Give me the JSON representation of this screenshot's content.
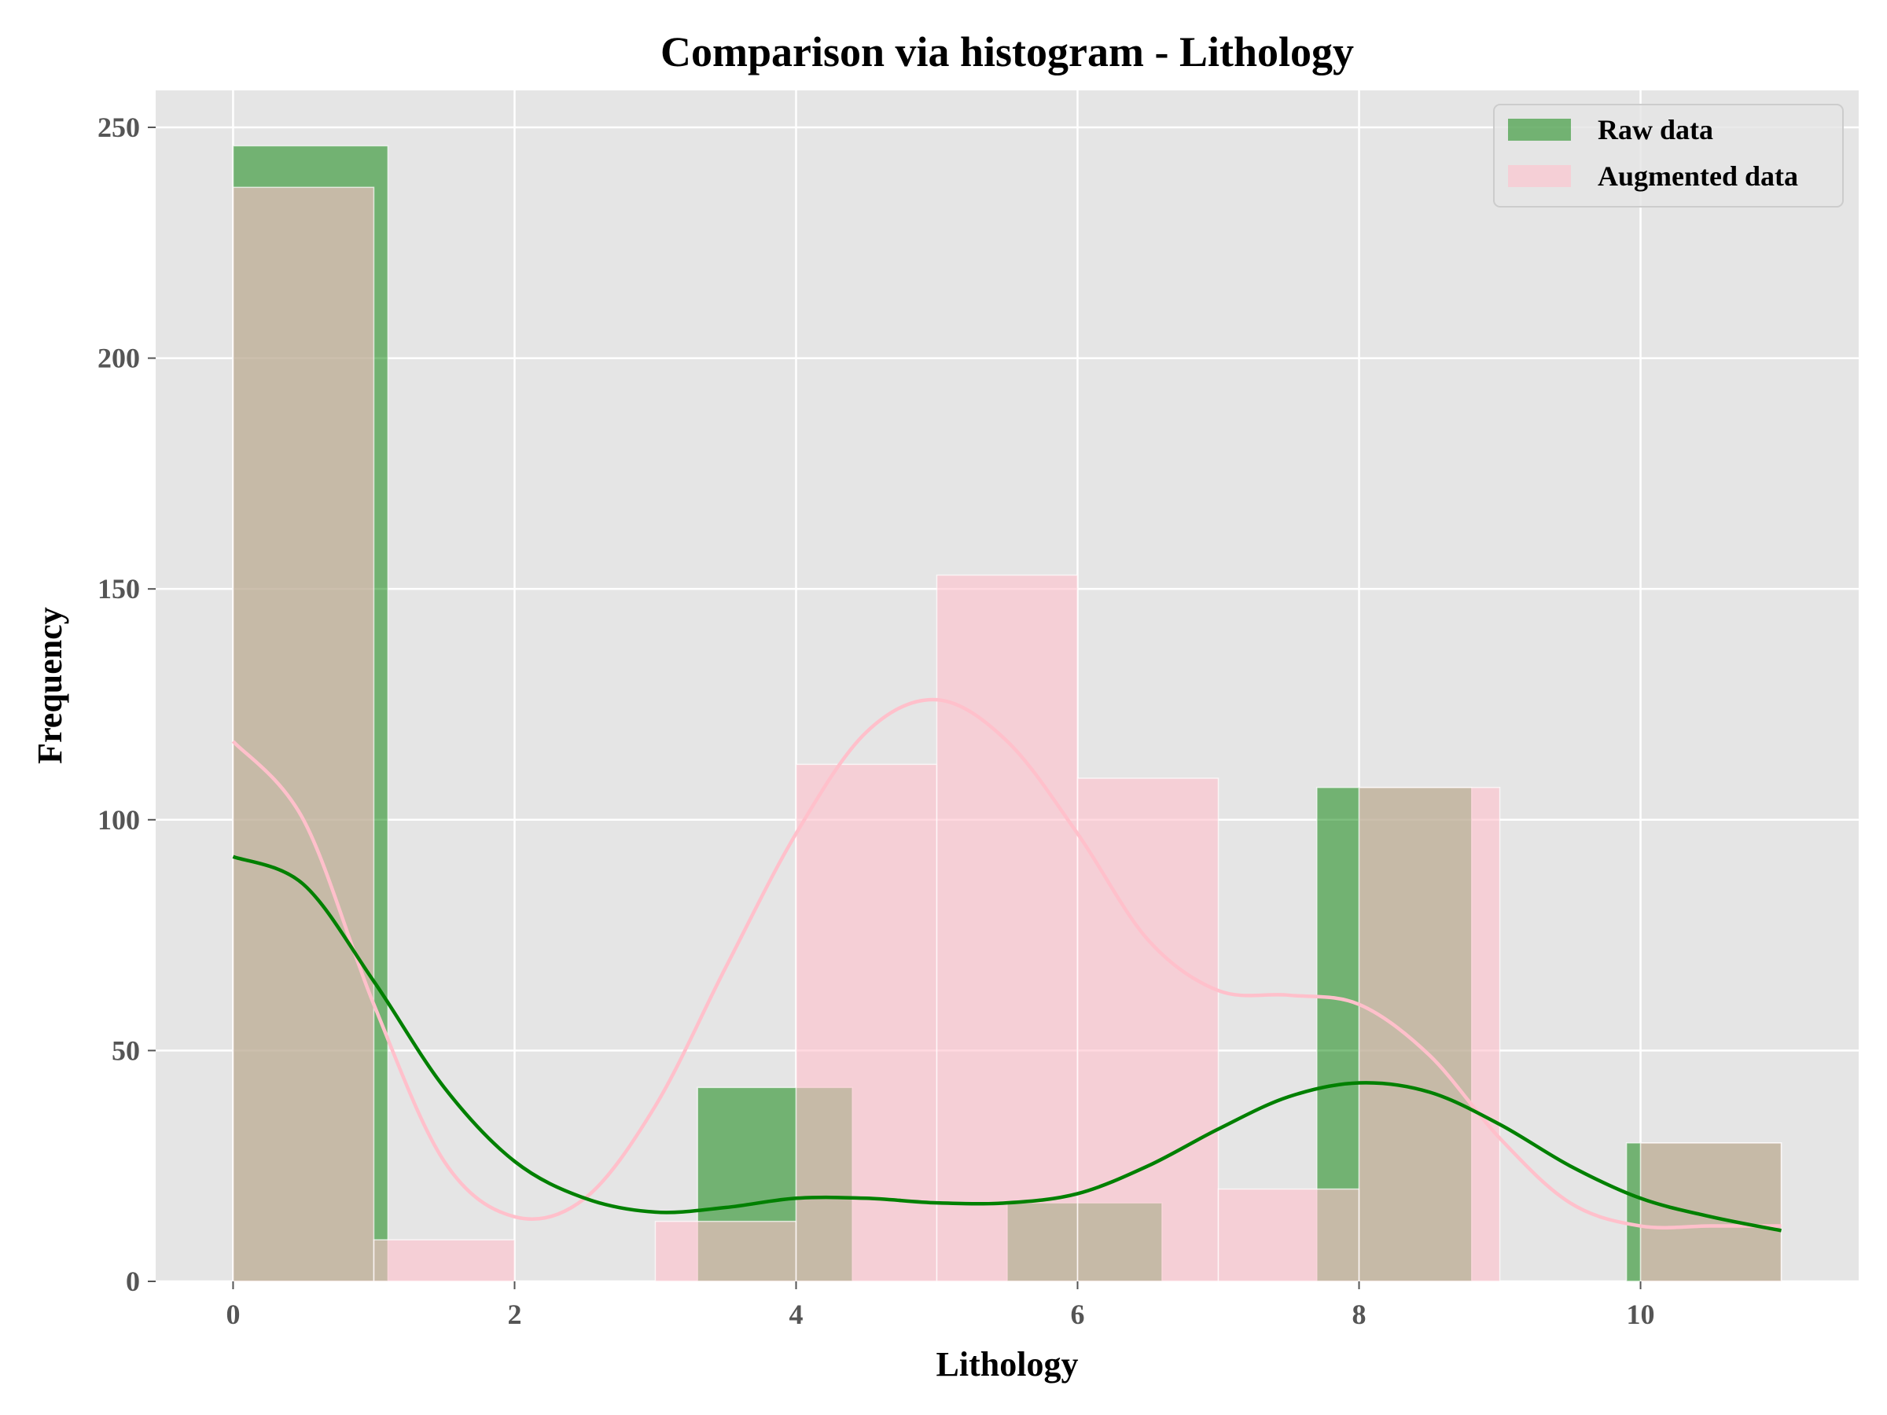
{
  "chart_data": {
    "type": "bar",
    "title": "Comparison via histogram - Lithology",
    "xlabel": "Lithology",
    "ylabel": "Frequency",
    "xlim": [
      -0.55,
      11.55
    ],
    "ylim": [
      0,
      258
    ],
    "xticks": [
      0,
      2,
      4,
      6,
      8,
      10
    ],
    "yticks": [
      0,
      50,
      100,
      150,
      200,
      250
    ],
    "grid": true,
    "legend": "top-right",
    "colors": {
      "raw_bar": "#008000",
      "raw_line": "#008000",
      "aug_bar": "#ffc0cb",
      "aug_line": "#ffc0cb",
      "axes_bg": "#e5e5e5",
      "grid": "#ffffff"
    },
    "series": [
      {
        "name": "Raw data",
        "bins": [
          {
            "x0": 0,
            "x1": 1.1,
            "count": 246
          },
          {
            "x0": 3.3,
            "x1": 4.4,
            "count": 42
          },
          {
            "x0": 5.5,
            "x1": 6.6,
            "count": 17
          },
          {
            "x0": 7.7,
            "x1": 8.8,
            "count": 107
          },
          {
            "x0": 9.9,
            "x1": 11.0,
            "count": 30
          }
        ],
        "kde": {
          "x": [
            0,
            0.5,
            1,
            1.5,
            2,
            2.5,
            3,
            3.5,
            4,
            4.5,
            5,
            5.5,
            6,
            6.5,
            7,
            7.5,
            8,
            8.5,
            9,
            9.5,
            10,
            10.5,
            11
          ],
          "y": [
            92,
            86,
            65,
            42,
            26,
            18,
            15,
            16,
            18,
            18,
            17,
            17,
            19,
            25,
            33,
            40,
            43,
            41,
            34,
            25,
            18,
            14,
            11
          ]
        }
      },
      {
        "name": "Augmented data",
        "bins": [
          {
            "x0": 0,
            "x1": 1,
            "count": 237
          },
          {
            "x0": 1,
            "x1": 2,
            "count": 9
          },
          {
            "x0": 2,
            "x1": 3,
            "count": 0
          },
          {
            "x0": 3,
            "x1": 4,
            "count": 13
          },
          {
            "x0": 4,
            "x1": 5,
            "count": 112
          },
          {
            "x0": 5,
            "x1": 6,
            "count": 153
          },
          {
            "x0": 6,
            "x1": 7,
            "count": 109
          },
          {
            "x0": 7,
            "x1": 8,
            "count": 20
          },
          {
            "x0": 8,
            "x1": 9,
            "count": 107
          },
          {
            "x0": 9,
            "x1": 10,
            "count": 0
          },
          {
            "x0": 10,
            "x1": 11,
            "count": 30
          }
        ],
        "kde": {
          "x": [
            0,
            0.5,
            1,
            1.5,
            2,
            2.5,
            3,
            3.5,
            4,
            4.5,
            5,
            5.5,
            6,
            6.5,
            7,
            7.5,
            8,
            8.5,
            9,
            9.5,
            10,
            10.5,
            11
          ],
          "y": [
            117,
            100,
            60,
            26,
            14,
            18,
            38,
            68,
            97,
            119,
            126,
            117,
            97,
            74,
            63,
            62,
            60,
            49,
            31,
            17,
            12,
            12,
            12
          ]
        }
      }
    ]
  }
}
